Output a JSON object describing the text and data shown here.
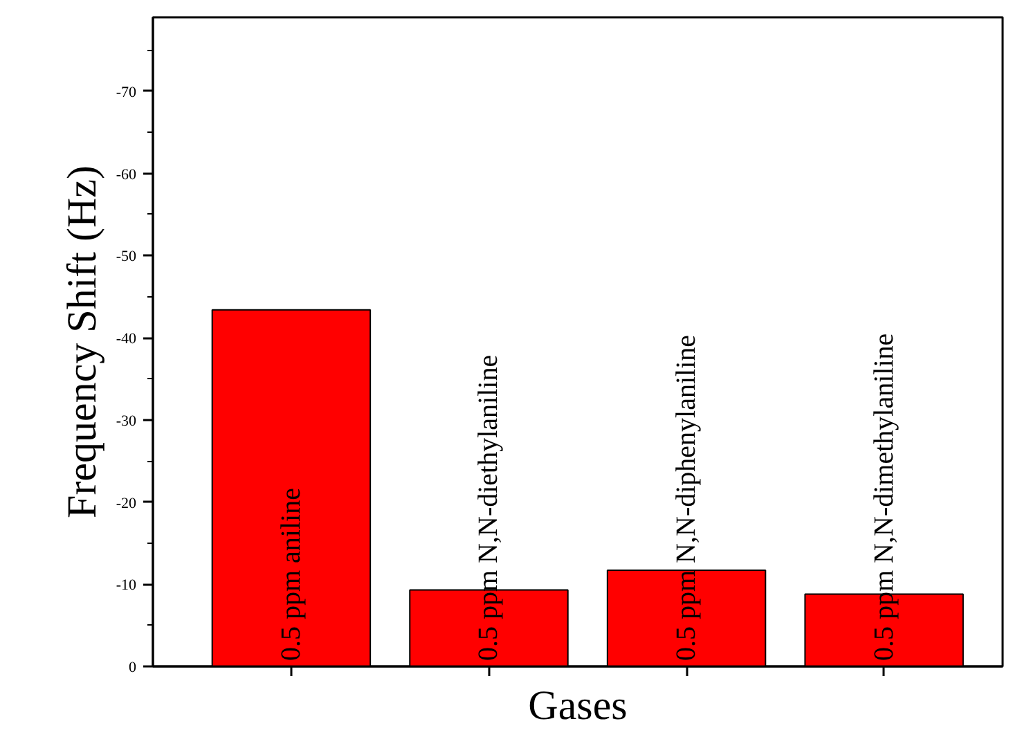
{
  "chart_data": {
    "type": "bar",
    "xlabel": "Gases",
    "ylabel": "Frequency Shift (Hz)",
    "categories": [
      "0.5 ppm aniline",
      "0.5 ppm N,N-diethylaniline",
      "0.5 ppm N,N-diphenylaniline",
      "0.5 ppm N,N-dimethylaniline"
    ],
    "values": [
      -43.4,
      -9.3,
      -11.7,
      -8.8
    ],
    "color": "#ff0000",
    "ylim": [
      0,
      -79
    ],
    "yticks": [
      0,
      -10,
      -20,
      -30,
      -40,
      -50,
      -60,
      -70
    ],
    "grid": false
  }
}
